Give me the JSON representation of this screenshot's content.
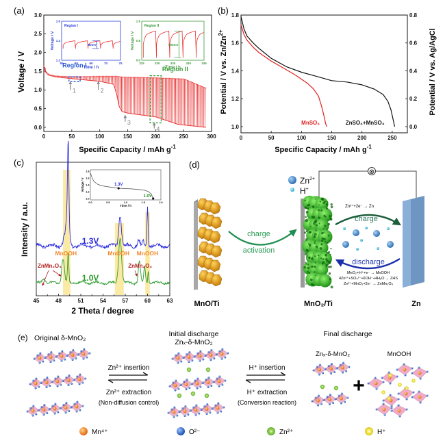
{
  "figure": {
    "panels": {
      "a": {
        "label": "(a)"
      },
      "b": {
        "label": "(b)"
      },
      "c": {
        "label": "(c)"
      },
      "d": {
        "label": "(d)"
      },
      "e": {
        "label": "(e)"
      }
    }
  },
  "chart_data": [
    {
      "id": "a",
      "type": "line",
      "title": "",
      "xlabel": "Specific Capacity / mAh g",
      "xlabel_sup": "-1",
      "ylabel": "Voltage / V",
      "xlim": [
        0,
        300
      ],
      "ylim": [
        0,
        3.0
      ],
      "xticks": [
        "0",
        "50",
        "100",
        "150",
        "200",
        "250",
        "300"
      ],
      "yticks": [
        "0.0",
        "0.5",
        "1.0",
        "1.5",
        "2.0",
        "2.5",
        "3.0"
      ],
      "series_color": "#e83030",
      "envelope_upper": {
        "x": [
          0,
          3,
          8,
          20,
          50,
          100,
          130,
          140,
          200,
          250,
          290
        ],
        "y": [
          1.65,
          1.5,
          1.42,
          1.38,
          1.36,
          1.37,
          1.37,
          1.35,
          1.33,
          1.3,
          1.05
        ]
      },
      "envelope_lower": {
        "x": [
          0,
          3,
          8,
          20,
          50,
          100,
          125,
          130,
          135,
          140,
          150,
          200,
          240,
          290
        ],
        "y": [
          1.65,
          1.48,
          1.4,
          1.35,
          1.3,
          1.23,
          1.15,
          0.9,
          0.55,
          0.42,
          0.38,
          0.28,
          0.08,
          0.0
        ]
      },
      "annotations": [
        {
          "text": "Region I",
          "x": 55,
          "y": 1.6,
          "color": "#2a5bd7"
        },
        {
          "text": "Region II",
          "x": 235,
          "y": 1.5,
          "color": "#3a9a3a"
        },
        {
          "text": "1",
          "x": 50
        },
        {
          "text": "2",
          "x": 100
        },
        {
          "text": "3",
          "x": 148
        },
        {
          "text": "4",
          "x": 200
        }
      ],
      "region_boxes": [
        {
          "name": "Region I",
          "x": [
            45,
            65
          ],
          "y": [
            1.22,
            1.35
          ],
          "color": "#2a5bd7"
        },
        {
          "name": "Region II",
          "x": [
            190,
            210
          ],
          "y": [
            0.12,
            1.38
          ],
          "color": "#3a9a3a"
        }
      ],
      "insets": [
        {
          "title": "Region I",
          "xlabel": "Time / h",
          "ylabel": "Voltage / V",
          "xlim": [
            55,
            75
          ],
          "ylim": [
            1.2,
            1.6
          ],
          "xticks": [
            "55",
            "60",
            "65",
            "70",
            "75"
          ],
          "yticks": [
            "1.2",
            "1.4",
            "1.6"
          ],
          "annotation": "80mV",
          "color": "#2a3fd7"
        },
        {
          "title": "Region II",
          "xlabel": "Time / h",
          "ylabel": "Voltage / V",
          "xlim": [
            325,
            345
          ],
          "ylim": [
            0.0,
            1.6
          ],
          "xticks": [
            "325",
            "330",
            "335",
            "340",
            "345"
          ],
          "yticks": [
            "0.0",
            "0.8",
            "1.6"
          ],
          "annotation": "800mV",
          "color": "#3a9a3a"
        }
      ]
    },
    {
      "id": "b",
      "type": "line",
      "xlabel": "Specific Capacity / mAh g",
      "xlabel_sup": "-1",
      "ylabel": "Potential  / V vs. Zn/Zn",
      "ylabel_sup": "2+",
      "ylabel_right": "Potential  / V vs. Ag/AgCl",
      "xlim": [
        0,
        275
      ],
      "ylim": [
        1.0,
        1.8
      ],
      "ylim_right": [
        0.0,
        0.8
      ],
      "xticks": [
        "0",
        "50",
        "100",
        "150",
        "200",
        "250"
      ],
      "yticks": [
        "1.0",
        "1.2",
        "1.4",
        "1.6",
        "1.8"
      ],
      "yticks_right": [
        "0.0",
        "0.2",
        "0.4",
        "0.6",
        "0.8"
      ],
      "series": [
        {
          "name": "MnSO4",
          "label": "MnSO₄",
          "color": "#e02020",
          "x": [
            0,
            5,
            10,
            20,
            30,
            50,
            70,
            90,
            100,
            110,
            120,
            128,
            133,
            137,
            140,
            142
          ],
          "y": [
            1.73,
            1.66,
            1.62,
            1.57,
            1.53,
            1.47,
            1.42,
            1.37,
            1.34,
            1.31,
            1.27,
            1.22,
            1.15,
            1.08,
            1.02,
            1.0
          ]
        },
        {
          "name": "ZnSO4+MnSO4",
          "label": "ZnSO₄+MnSO₄",
          "color": "#111111",
          "x": [
            0,
            5,
            10,
            20,
            30,
            50,
            75,
            100,
            125,
            150,
            175,
            200,
            220,
            235,
            243,
            248,
            251,
            253,
            254
          ],
          "y": [
            1.79,
            1.7,
            1.65,
            1.6,
            1.56,
            1.49,
            1.43,
            1.39,
            1.36,
            1.33,
            1.32,
            1.3,
            1.27,
            1.23,
            1.18,
            1.12,
            1.06,
            1.02,
            1.0
          ]
        }
      ]
    },
    {
      "id": "c",
      "type": "line",
      "xlabel": "2 Theta / degree",
      "ylabel": "Intensity / a.u.",
      "xlim": [
        45,
        63
      ],
      "xticks": [
        "45",
        "48",
        "51",
        "54",
        "57",
        "60",
        "63"
      ],
      "highlight_bands": [
        [
          48.6,
          49.6
        ],
        [
          55.6,
          56.8
        ],
        [
          59.7,
          60.3
        ]
      ],
      "band_color": "#fbeaa6",
      "series": [
        {
          "name": "1.3V",
          "label": "1.3V",
          "color": "#2a2adf",
          "peaks": [
            [
              49.3,
              1.0,
              0.12
            ],
            [
              49.2,
              0.45,
              0.3
            ],
            [
              56.3,
              0.42,
              0.25
            ],
            [
              60.0,
              0.55,
              0.1
            ],
            [
              48.7,
              0.08,
              0.2
            ],
            [
              58.8,
              0.08,
              0.2
            ],
            [
              59.4,
              0.06,
              0.15
            ]
          ]
        },
        {
          "name": "1.0V",
          "label": "1.0V",
          "color": "#2a9a2a",
          "peaks": [
            [
              48.6,
              0.5,
              0.25
            ],
            [
              49.3,
              0.6,
              0.12
            ],
            [
              46.0,
              0.1,
              0.3
            ],
            [
              56.3,
              0.95,
              0.28
            ],
            [
              58.9,
              0.45,
              0.2
            ],
            [
              59.6,
              0.33,
              0.15
            ],
            [
              60.1,
              0.25,
              0.1
            ]
          ]
        }
      ],
      "peak_labels": [
        {
          "text": "MnOOH",
          "x": 49.0,
          "color": "#f28a30"
        },
        {
          "text": "MnOOH",
          "x": 56.1,
          "color": "#f28a30"
        },
        {
          "text": "MnOOH",
          "x": 60.0,
          "color": "#f28a30"
        },
        {
          "text": "ZnMn₂O₄",
          "x": 46.8,
          "color": "#b02020"
        },
        {
          "text": "ZnMn₂O₄",
          "x": 59.0,
          "color": "#b02020"
        }
      ],
      "inset": {
        "xlabel": "Time / h",
        "ylabel": "Voltage / V",
        "xlim": [
          0.0,
          2.0
        ],
        "ylim": [
          1.0,
          1.8
        ],
        "xticks": [
          "0.0",
          "0.5",
          "1.0",
          "1.5",
          "2.0"
        ],
        "yticks": [
          "1.0",
          "1.2",
          "1.4",
          "1.6",
          "1.8"
        ],
        "x": [
          0.0,
          0.05,
          0.1,
          0.2,
          0.3,
          0.45,
          0.6,
          0.8,
          1.0,
          1.2,
          1.4,
          1.55,
          1.65,
          1.72,
          1.76,
          1.78
        ],
        "y": [
          1.75,
          1.6,
          1.5,
          1.42,
          1.38,
          1.35,
          1.33,
          1.3,
          1.29,
          1.28,
          1.26,
          1.24,
          1.2,
          1.14,
          1.06,
          1.0
        ],
        "markers": [
          {
            "label": "1.3V",
            "x": 0.8,
            "y": 1.3,
            "color": "#2a2adf"
          },
          {
            "label": "1.0V",
            "x": 1.78,
            "y": 1.0,
            "color": "#1d8f1d"
          }
        ]
      }
    }
  ],
  "panel_d": {
    "legend": [
      {
        "label": "Zn",
        "sup": "2+",
        "color": "#4a8fd0"
      },
      {
        "label": "H",
        "sup": "+",
        "color": "#3ec8d8"
      }
    ],
    "electrodes": [
      "MnO/Ti",
      "MnO₂/Ti",
      "Zn"
    ],
    "activation_label_1": "charge",
    "activation_label_2": "activation",
    "charge_label": "charge",
    "discharge_label": "discharge",
    "charge_reaction": "Zn²⁺+2e⁻ → Zn",
    "discharge_reactions": [
      "MnO₂+H⁺+e⁻ → MnOOH",
      "4Zn²⁺+SO₄²⁻+6OH⁻+4H₂O → ZHS",
      "Zn²⁺+MnO₂+2e⁻ → ZnMn₂O₄"
    ],
    "circuit_symbol": "⊗"
  },
  "panel_e": {
    "stage1_title": "Original δ-MnO₂",
    "stage2_title_1": "Initial discharge",
    "stage2_title_2": "Znₓ-δ-MnO₂",
    "stage3_title": "Final discharge",
    "stage3_sub_1": "Znₓ-δ-MnO₂",
    "stage3_sub_2": "MnOOH",
    "step1_forward": "Zn²⁺ insertion",
    "step1_backward": "Zn²⁺ extraction",
    "step1_note": "(Non-diffusion control)",
    "step2_forward": "H⁺ insertion",
    "step2_backward": "H⁺ extraction",
    "step2_note": "(Conversion reaction)",
    "plus": "+",
    "legend": [
      {
        "label": "Mn⁴⁺",
        "color": "#f07a2a"
      },
      {
        "label": "O²⁻",
        "color": "#2a6ad8"
      },
      {
        "label": "Zn²⁺",
        "color": "#7ac83a"
      },
      {
        "label": "H⁺",
        "color": "#f4e62a"
      }
    ]
  }
}
